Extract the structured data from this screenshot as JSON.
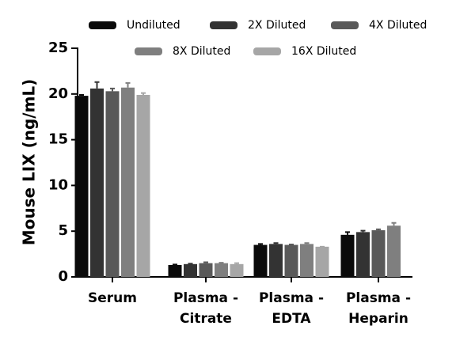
{
  "chart_data": {
    "type": "bar",
    "y_label": "Mouse LIX (ng/mL)",
    "categories": [
      [
        "Serum"
      ],
      [
        "Plasma -",
        "Citrate"
      ],
      [
        "Plasma -",
        "EDTA"
      ],
      [
        "Plasma -",
        "Heparin"
      ]
    ],
    "series": [
      {
        "name": "Undiluted",
        "color": "#0a0a0a",
        "values": [
          19.8,
          1.3,
          3.5,
          4.6
        ],
        "errors": [
          0.1,
          0.05,
          0.1,
          0.3
        ]
      },
      {
        "name": "2X Diluted",
        "color": "#333333",
        "values": [
          20.6,
          1.4,
          3.6,
          4.9
        ],
        "errors": [
          0.7,
          0.05,
          0.1,
          0.15
        ]
      },
      {
        "name": "4X Diluted",
        "color": "#595959",
        "values": [
          20.3,
          1.5,
          3.5,
          5.1
        ],
        "errors": [
          0.3,
          0.1,
          0.05,
          0.1
        ]
      },
      {
        "name": "8X Diluted",
        "color": "#7f7f7f",
        "values": [
          20.7,
          1.5,
          3.6,
          5.6
        ],
        "errors": [
          0.5,
          0.05,
          0.1,
          0.3
        ]
      },
      {
        "name": "16X Diluted",
        "color": "#a6a6a6",
        "values": [
          19.9,
          1.4,
          3.3,
          null
        ],
        "errors": [
          0.2,
          0.1,
          0,
          null
        ]
      }
    ],
    "ylim": [
      0,
      25
    ],
    "yticks": [
      0,
      5,
      10,
      15,
      20,
      25
    ]
  }
}
